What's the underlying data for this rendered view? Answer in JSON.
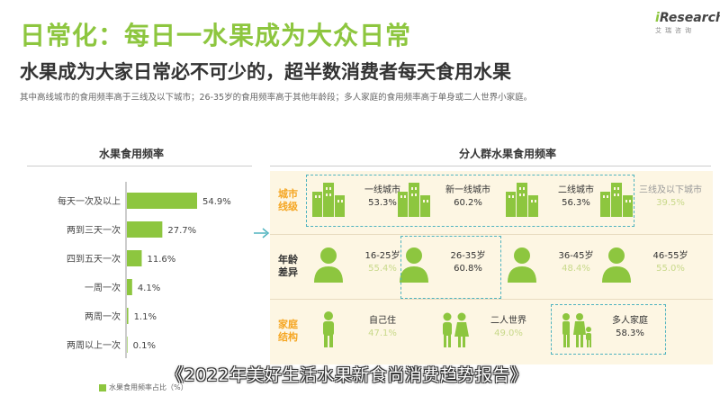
{
  "header": {
    "title": "日常化：每日一水果成为大众日常",
    "subtitle": "水果成为大家日常必不可少的，超半数消费者每天食用水果",
    "note": "其中高线城市的食用频率高于三线及以下城市；26-35岁的食用频率高于其他年龄段；多人家庭的食用频率高于单身或二人世界小家庭。"
  },
  "logo": {
    "prefix": "i",
    "name": "Research",
    "sub": "艾瑞咨询"
  },
  "left_chart": {
    "title": "水果食用频率",
    "legend": "水果食用频率占比（%）"
  },
  "right_chart": {
    "title": "分人群水果食用频率"
  },
  "caption": "《2022年美好生活水果新食尚消费趋势报告》",
  "colors": {
    "accent": "#8dc63f",
    "orange": "#f5a623",
    "dash": "#4fb3bf",
    "panel": "#fdf6e3"
  },
  "chart_data": [
    {
      "type": "bar",
      "orientation": "horizontal",
      "title": "水果食用频率",
      "categories": [
        "每天一次及以上",
        "两到三天一次",
        "四到五天一次",
        "一周一次",
        "两周一次",
        "两周以上一次"
      ],
      "values": [
        54.9,
        27.7,
        11.6,
        4.1,
        1.1,
        0.1
      ],
      "value_labels": [
        "54.9%",
        "27.7%",
        "11.6%",
        "4.1%",
        "1.1%",
        "0.1%"
      ],
      "legend": "水果食用频率占比（%）",
      "xlim": [
        0,
        60
      ]
    },
    {
      "type": "table",
      "title": "分人群水果食用频率",
      "groups": [
        {
          "label": "城市线级",
          "items": [
            {
              "name": "一线城市",
              "value": "53.3%",
              "icon": "city-buildings-icon",
              "highlight": true
            },
            {
              "name": "新一线城市",
              "value": "60.2%",
              "icon": "city-buildings-icon",
              "highlight": true
            },
            {
              "name": "二线城市",
              "value": "56.3%",
              "icon": "city-buildings-icon",
              "highlight": true
            },
            {
              "name": "三线及以下城市",
              "value": "39.5%",
              "icon": "city-buildings-icon",
              "highlight": false
            }
          ]
        },
        {
          "label": "年龄差异",
          "items": [
            {
              "name": "16-25岁",
              "value": "55.4%",
              "icon": "person-icon",
              "highlight": false
            },
            {
              "name": "26-35岁",
              "value": "60.8%",
              "icon": "person-icon",
              "highlight": true
            },
            {
              "name": "36-45岁",
              "value": "48.4%",
              "icon": "person-icon",
              "highlight": false
            },
            {
              "name": "46-55岁",
              "value": "55.0%",
              "icon": "person-icon",
              "highlight": false
            }
          ]
        },
        {
          "label": "家庭结构",
          "items": [
            {
              "name": "自己住",
              "value": "47.1%",
              "icon": "single-person-icon",
              "highlight": false
            },
            {
              "name": "二人世界",
              "value": "49.0%",
              "icon": "couple-icon",
              "highlight": false
            },
            {
              "name": "多人家庭",
              "value": "58.3%",
              "icon": "family-icon",
              "highlight": true
            }
          ]
        }
      ]
    }
  ]
}
